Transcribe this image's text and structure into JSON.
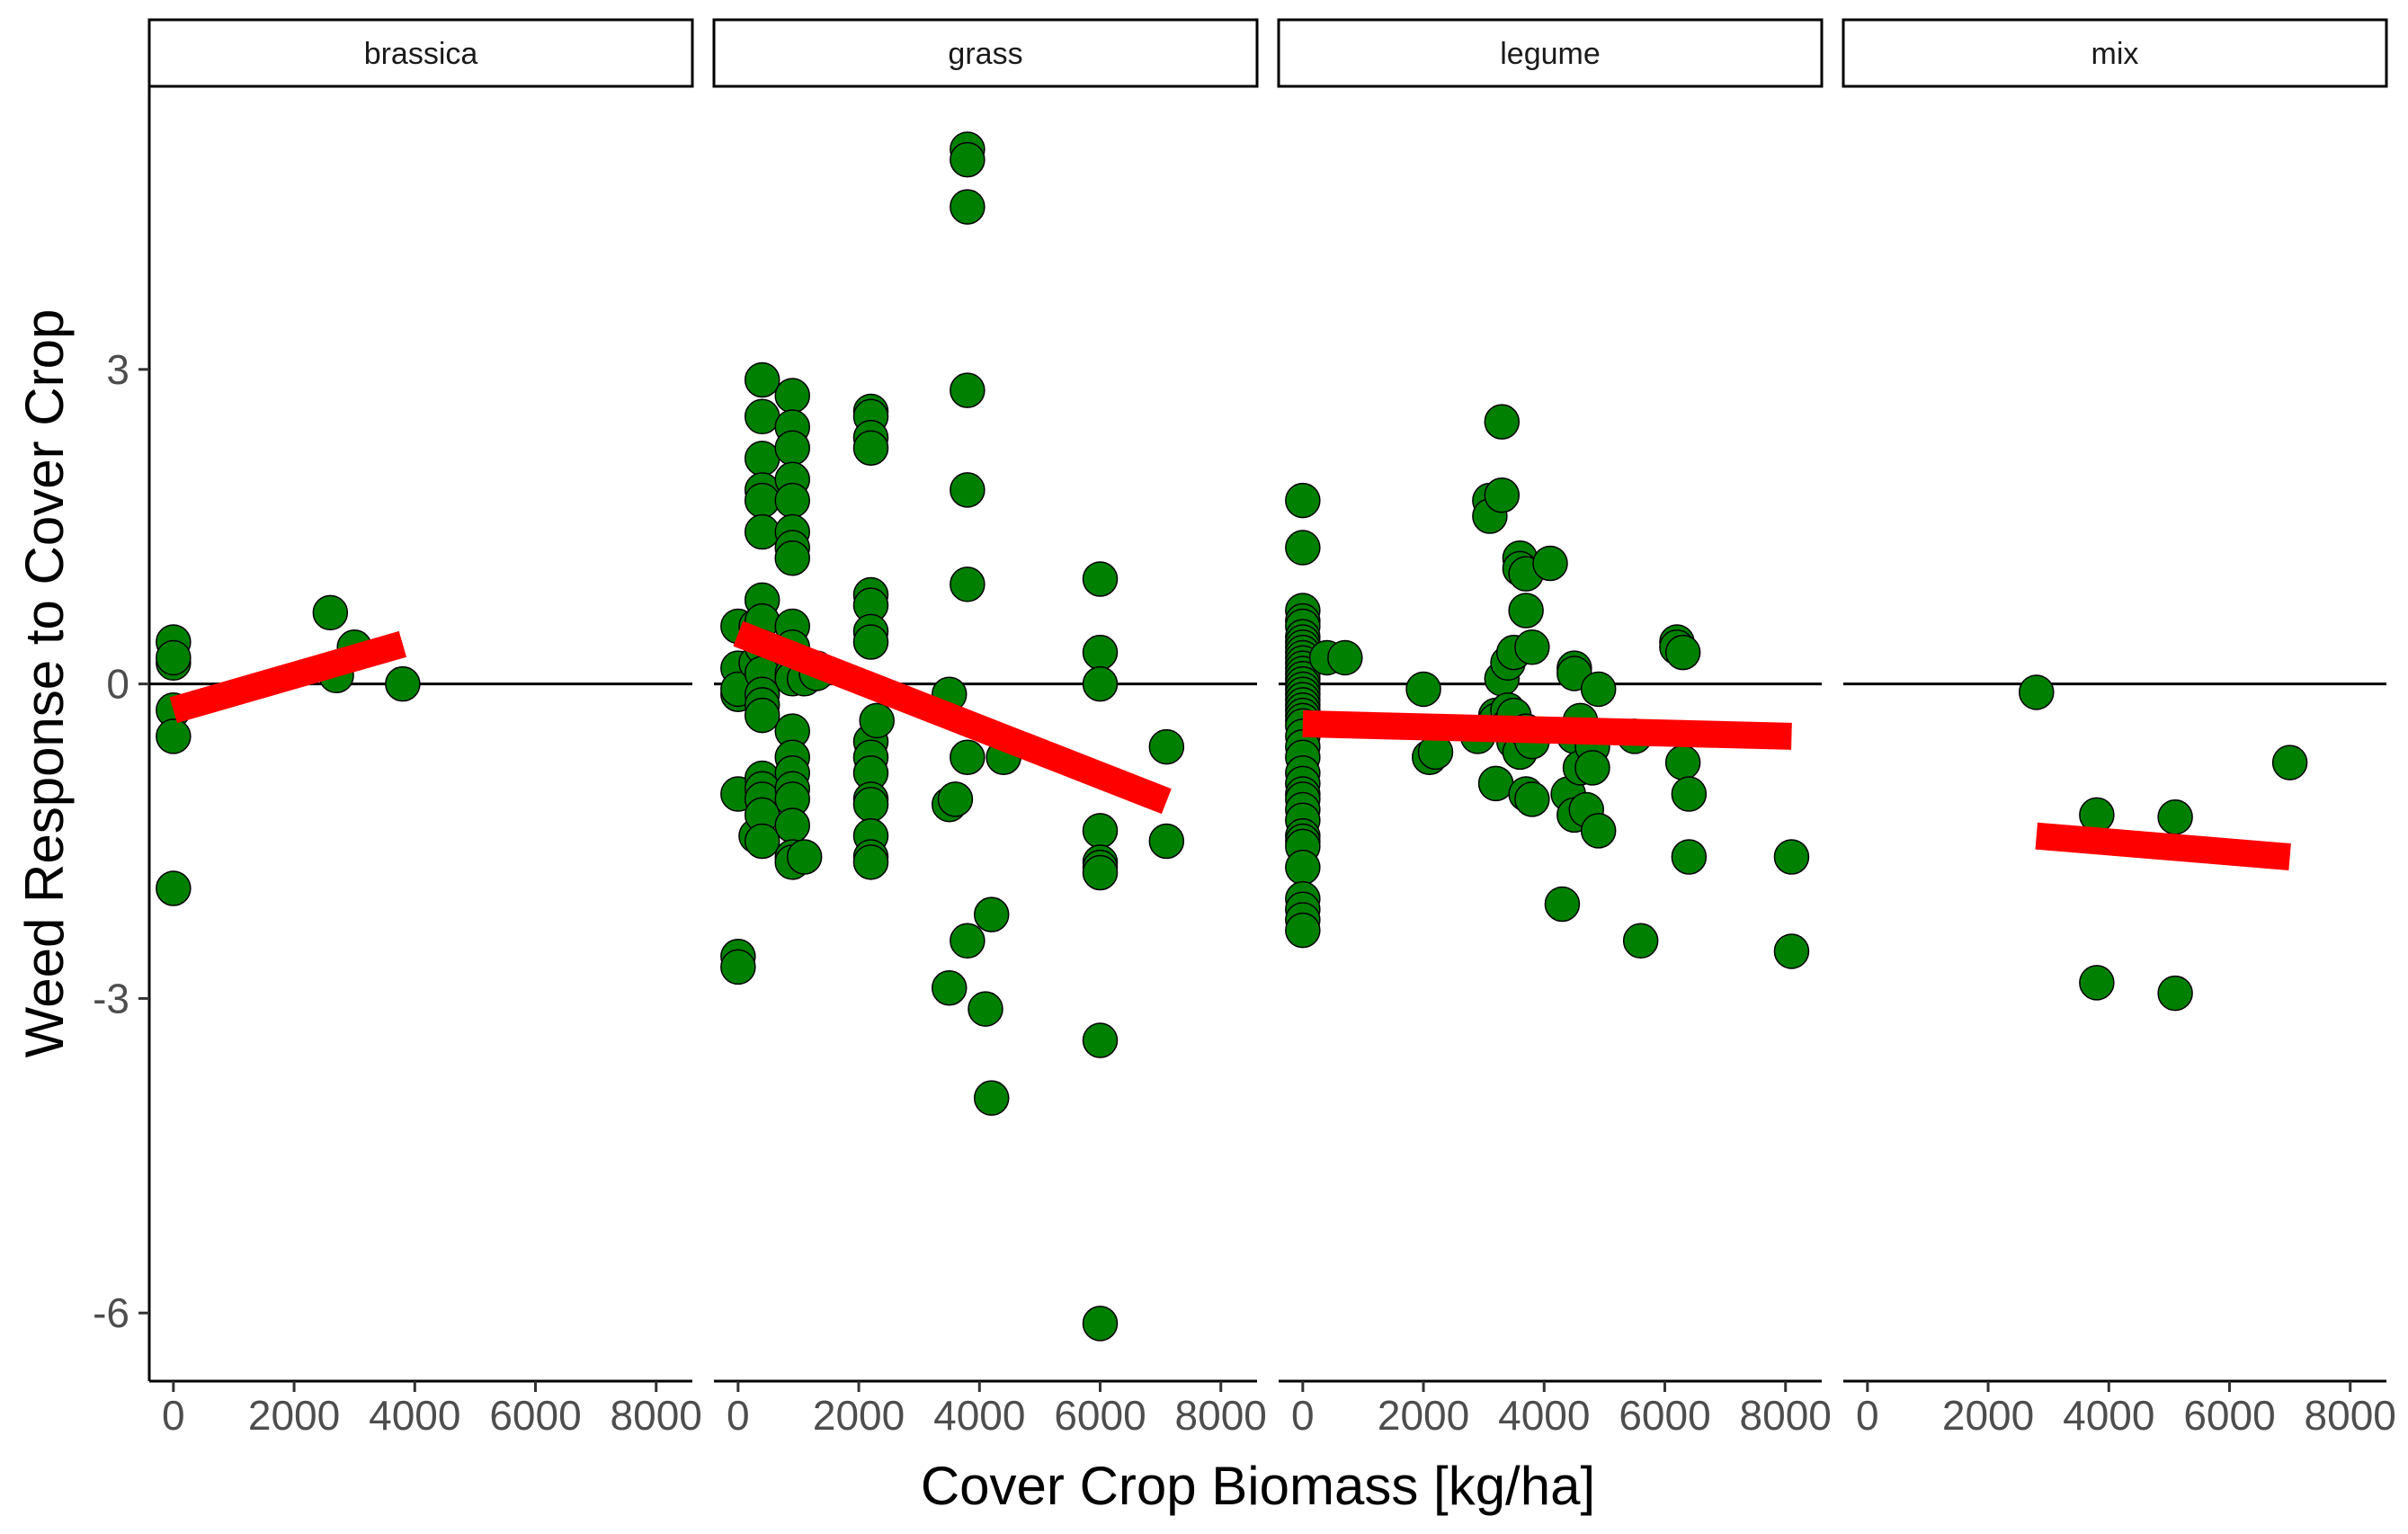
{
  "chart_data": {
    "type": "scatter",
    "xlabel": "Cover Crop Biomass [kg/ha]",
    "ylabel": "Weed Response to Cover Crop",
    "xlim": [
      -400,
      8600
    ],
    "ylim": [
      -6.65,
      5.7
    ],
    "x_ticks": [
      0,
      2000,
      4000,
      6000,
      8000
    ],
    "x_tick_labels": [
      "0",
      "2000",
      "4000",
      "6000",
      "8000"
    ],
    "y_ticks": [
      3,
      0,
      -3,
      -6
    ],
    "y_tick_labels": [
      "3",
      "0",
      "-3",
      "-6"
    ],
    "reference_line_y": 0,
    "grid": false,
    "colors": {
      "points": "#008000",
      "point_outline": "#000000",
      "trend": "#ff0000",
      "reference_line": "#000000"
    },
    "panels": [
      {
        "name": "brassica",
        "trend": {
          "x": [
            0,
            3800
          ],
          "y": [
            -0.25,
            0.38
          ]
        },
        "x": [
          0,
          0,
          0,
          0,
          0,
          0,
          2600,
          2700,
          3000,
          3800
        ],
        "y": [
          0.4,
          0.2,
          0.25,
          -0.25,
          -0.5,
          -1.95,
          0.68,
          0.08,
          0.35,
          0.0
        ]
      },
      {
        "name": "grass",
        "trend": {
          "x": [
            0,
            7100
          ],
          "y": [
            0.48,
            -1.12
          ]
        },
        "x": [
          0,
          0,
          0,
          0,
          0,
          0,
          0,
          300,
          300,
          300,
          400,
          400,
          400,
          400,
          400,
          400,
          400,
          400,
          400,
          400,
          400,
          400,
          400,
          400,
          400,
          400,
          400,
          400,
          900,
          900,
          900,
          900,
          900,
          900,
          900,
          900,
          900,
          900,
          900,
          900,
          900,
          900,
          900,
          900,
          900,
          900,
          900,
          900,
          1100,
          1100,
          1300,
          1300,
          2200,
          2200,
          2200,
          2200,
          2200,
          2200,
          2200,
          2200,
          2200,
          2200,
          2200,
          2200,
          2200,
          2200,
          2200,
          2200,
          2300,
          3500,
          3500,
          3500,
          3600,
          3800,
          3800,
          3800,
          3800,
          3800,
          3800,
          3800,
          3800,
          4100,
          4200,
          4200,
          4400,
          6000,
          6000,
          6000,
          6000,
          6000,
          6000,
          6000,
          6000,
          6000,
          7100,
          7100
        ],
        "y": [
          0.55,
          0.15,
          -1.05,
          -2.6,
          -2.7,
          -0.1,
          -0.05,
          0.55,
          0.2,
          -1.45,
          2.9,
          2.55,
          2.15,
          1.85,
          1.75,
          1.45,
          0.8,
          0.6,
          0.35,
          0.1,
          -0.1,
          -0.2,
          -0.3,
          -0.9,
          -1.0,
          -1.1,
          -1.25,
          -1.5,
          2.75,
          2.45,
          2.25,
          1.95,
          1.75,
          1.45,
          1.3,
          1.2,
          0.55,
          0.35,
          0.1,
          0.05,
          -0.45,
          -0.7,
          -0.85,
          -1.0,
          -1.1,
          -1.35,
          -1.65,
          -1.7,
          0.05,
          -1.65,
          0.15,
          0.1,
          2.6,
          2.55,
          2.35,
          2.25,
          0.85,
          0.75,
          0.5,
          0.4,
          -0.55,
          -0.7,
          -0.85,
          -1.1,
          -1.15,
          -1.45,
          -1.65,
          -1.7,
          -0.35,
          -0.1,
          -1.15,
          -2.9,
          -1.1,
          5.1,
          5.0,
          4.55,
          2.8,
          1.85,
          0.95,
          -0.7,
          -2.45,
          -3.1,
          -2.2,
          -3.95,
          -0.7,
          1.0,
          0.3,
          0.0,
          -1.4,
          -1.7,
          -1.75,
          -1.8,
          -3.4,
          -6.1,
          -0.6,
          -1.5
        ]
      },
      {
        "name": "legume",
        "trend": {
          "x": [
            0,
            8100
          ],
          "y": [
            -0.38,
            -0.5
          ]
        },
        "x": [
          0,
          0,
          0,
          0,
          0,
          0,
          0,
          0,
          0,
          0,
          0,
          0,
          0,
          0,
          0,
          0,
          0,
          0,
          0,
          0,
          0,
          0,
          0,
          0,
          0,
          0,
          0,
          0,
          0,
          0,
          0,
          0,
          0,
          0,
          0,
          0,
          0,
          0,
          0,
          0,
          400,
          700,
          2000,
          2100,
          2200,
          2900,
          3100,
          3100,
          3200,
          3200,
          3200,
          3300,
          3300,
          3300,
          3400,
          3400,
          3400,
          3500,
          3500,
          3500,
          3600,
          3600,
          3600,
          3700,
          3700,
          3700,
          3700,
          3800,
          3800,
          3800,
          4100,
          4300,
          4400,
          4500,
          4500,
          4500,
          4500,
          4600,
          4600,
          4700,
          4800,
          4800,
          4900,
          4900,
          5500,
          5600,
          6200,
          6200,
          6300,
          6300,
          6400,
          6400,
          8100,
          8100
        ],
        "y": [
          1.75,
          1.3,
          0.7,
          0.6,
          0.55,
          0.45,
          0.4,
          0.35,
          0.3,
          0.25,
          0.2,
          0.15,
          0.1,
          0.05,
          0.0,
          -0.05,
          -0.1,
          -0.15,
          -0.2,
          -0.25,
          -0.3,
          -0.35,
          -0.4,
          -0.5,
          -0.6,
          -0.7,
          -0.85,
          -0.95,
          -1.05,
          -1.1,
          -1.2,
          -1.3,
          -1.45,
          -1.5,
          -1.55,
          -1.75,
          -2.05,
          -2.15,
          -2.25,
          -2.35,
          0.25,
          0.25,
          -0.05,
          -0.7,
          -0.65,
          -0.5,
          1.75,
          1.6,
          -0.3,
          -0.35,
          -0.95,
          2.5,
          1.8,
          0.05,
          0.2,
          -0.25,
          -0.4,
          0.3,
          -0.3,
          -0.55,
          1.2,
          1.1,
          -0.65,
          1.05,
          0.7,
          -0.45,
          -1.05,
          0.35,
          -0.55,
          -1.1,
          1.15,
          -2.1,
          -1.05,
          0.15,
          0.1,
          -0.5,
          -1.25,
          -0.35,
          -0.8,
          -1.2,
          -0.6,
          -0.8,
          -0.05,
          -1.4,
          -0.5,
          -2.45,
          0.4,
          0.35,
          0.3,
          -0.75,
          -1.05,
          -1.65,
          -1.65,
          -2.55
        ]
      },
      {
        "name": "mix",
        "trend": {
          "x": [
            2800,
            7000
          ],
          "y": [
            -1.45,
            -1.65
          ]
        },
        "x": [
          2800,
          3800,
          3800,
          5100,
          5100,
          7000
        ],
        "y": [
          -0.08,
          -1.25,
          -2.85,
          -1.27,
          -2.95,
          -0.75
        ]
      }
    ]
  }
}
